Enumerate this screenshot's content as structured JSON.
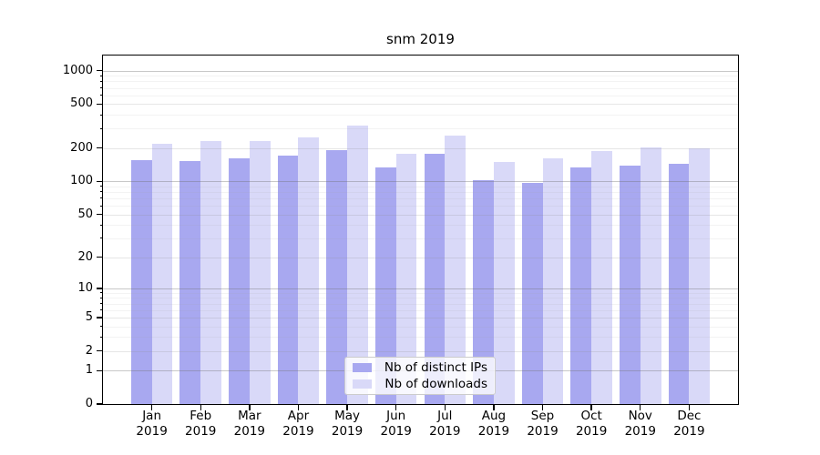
{
  "chart_title": "snm 2019",
  "chart_data": {
    "type": "bar",
    "title": "snm 2019",
    "categories": [
      "Jan 2019",
      "Feb 2019",
      "Mar 2019",
      "Apr 2019",
      "May 2019",
      "Jun 2019",
      "Jul 2019",
      "Aug 2019",
      "Sep 2019",
      "Oct 2019",
      "Nov 2019",
      "Dec 2019"
    ],
    "series": [
      {
        "name": "Nb of distinct IPs",
        "color": "#a8a8f0",
        "values": [
          155,
          152,
          162,
          172,
          192,
          134,
          179,
          102,
          96,
          134,
          139,
          143
        ]
      },
      {
        "name": "Nb of downloads",
        "color": "#d9d9f8",
        "values": [
          220,
          230,
          233,
          250,
          317,
          178,
          260,
          150,
          163,
          190,
          205,
          199
        ]
      }
    ],
    "y_axis": {
      "scale": "symlog",
      "tick_values": [
        0,
        1,
        2,
        5,
        10,
        20,
        50,
        100,
        200,
        500,
        1000
      ],
      "minor_values": [
        3,
        4,
        6,
        7,
        8,
        9,
        30,
        40,
        60,
        70,
        80,
        90,
        300,
        400,
        600,
        700,
        800,
        900
      ],
      "sub_values": [
        2,
        5,
        20,
        50,
        200,
        500
      ],
      "major_values": [
        1,
        10,
        100,
        1000
      ],
      "max": 1370
    },
    "grid": true,
    "legend_position": "inside-bottom-center"
  }
}
